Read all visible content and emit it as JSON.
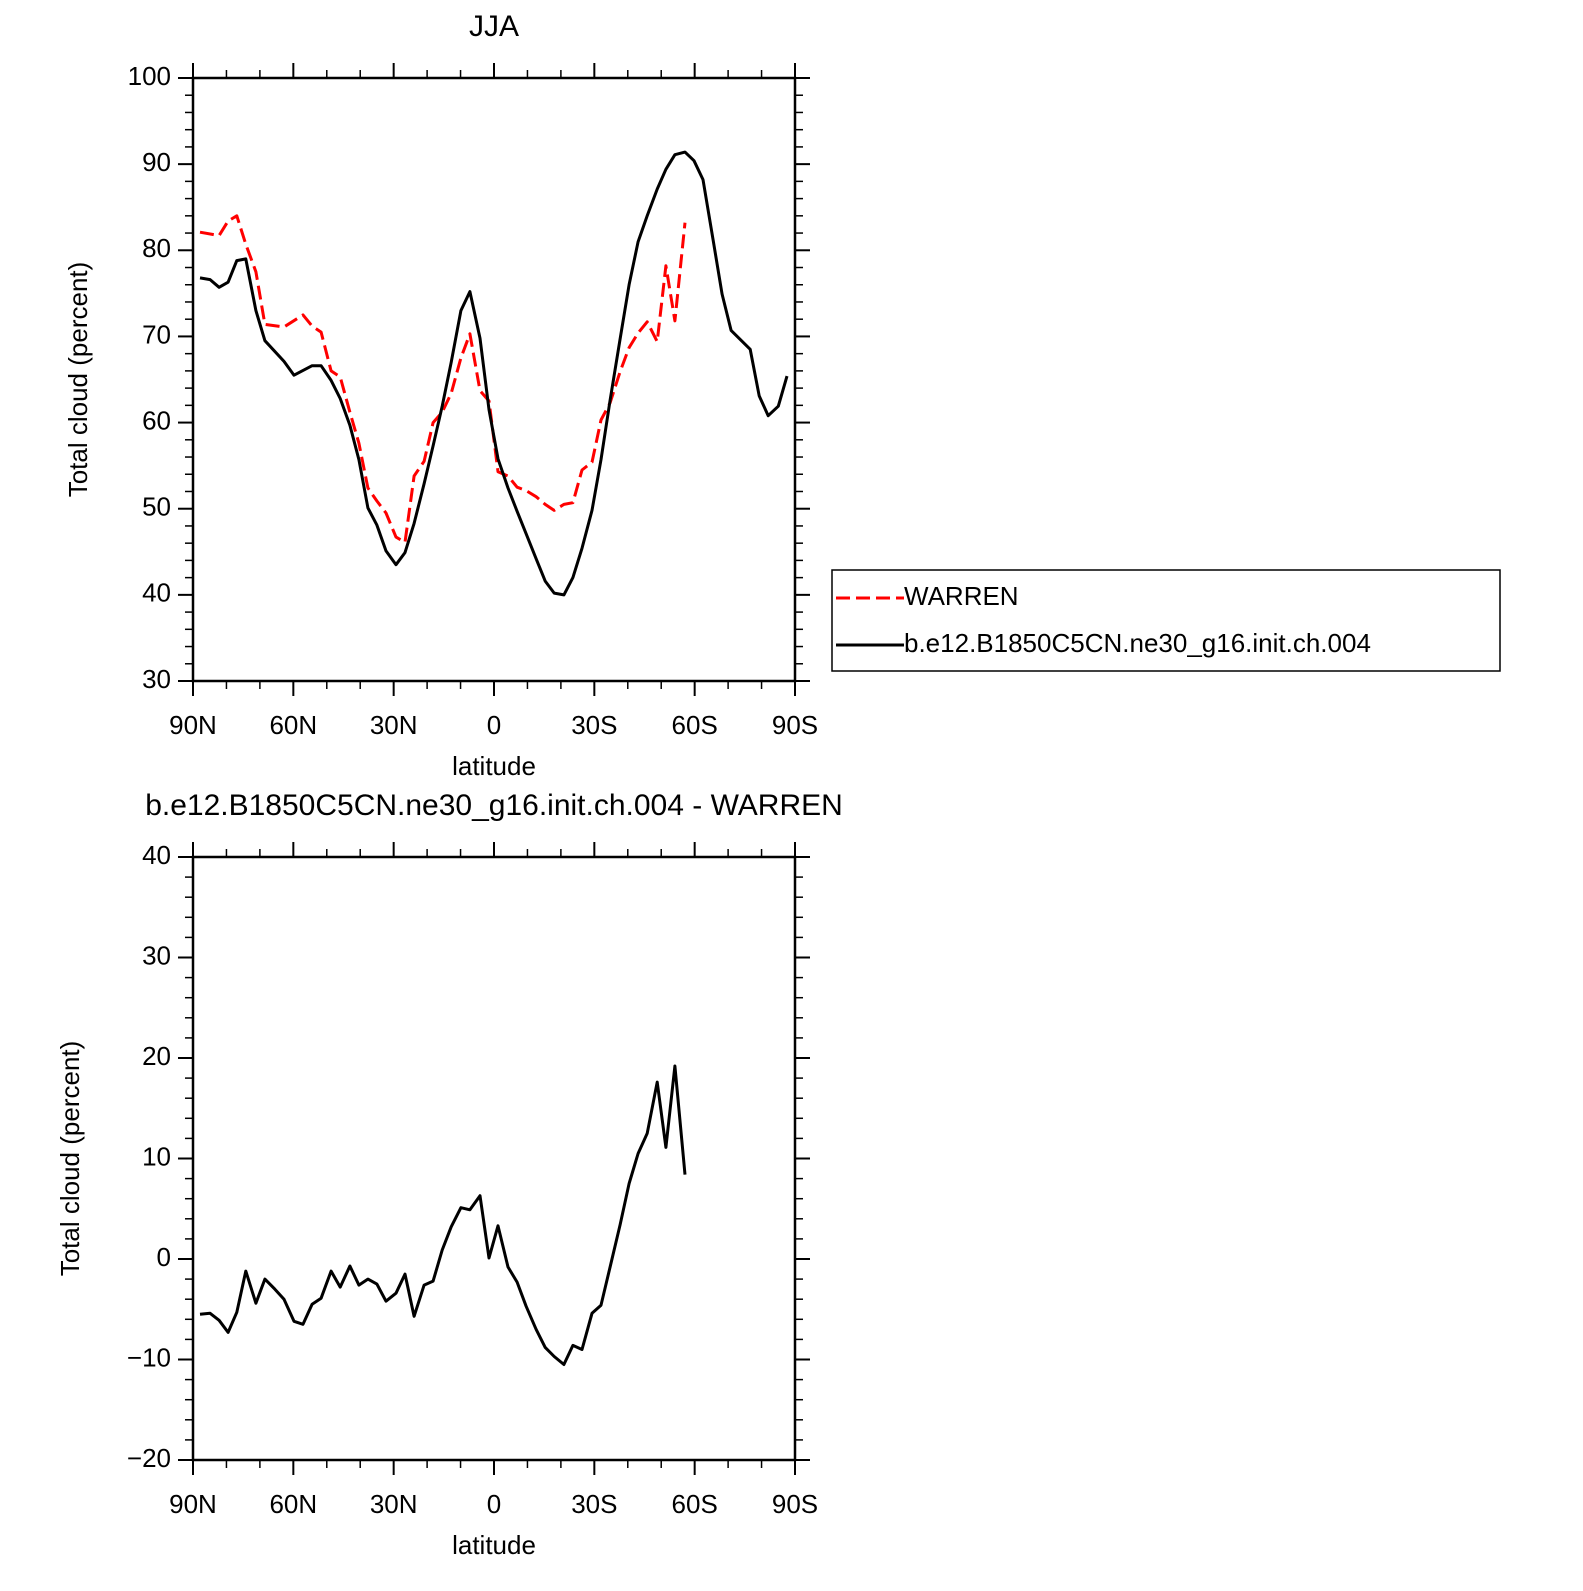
{
  "chart_data": [
    {
      "type": "line",
      "title": "JJA",
      "xlabel": "latitude",
      "ylabel": "Total cloud (percent)",
      "xlim": [
        90,
        -90
      ],
      "xticks": [
        {
          "value": 90,
          "label": "90N"
        },
        {
          "value": 60,
          "label": "60N"
        },
        {
          "value": 30,
          "label": "30N"
        },
        0,
        {
          "value": -30,
          "label": "30S"
        },
        {
          "value": -60,
          "label": "60S"
        },
        {
          "value": -90,
          "label": "90S"
        }
      ],
      "ylim": [
        30,
        100
      ],
      "yticks": [
        30,
        40,
        50,
        60,
        70,
        80,
        90,
        100
      ],
      "legend": "right",
      "series": [
        {
          "name": "WARREN",
          "color": "#ff0000",
          "line_style": "dashed",
          "x": [
            87.9,
            82.2,
            79.5,
            76.9,
            74.2,
            71.2,
            68.5,
            62.8,
            57.1,
            54.4,
            51.7,
            48.7,
            46.0,
            43.1,
            40.4,
            37.7,
            35.0,
            32.3,
            29.3,
            26.6,
            23.9,
            20.9,
            18.2,
            15.5,
            12.8,
            9.9,
            7.2,
            4.2,
            1.5,
            -1.2,
            -4.2,
            -6.9,
            -9.6,
            -12.6,
            -15.3,
            -18.0,
            -20.9,
            -23.6,
            -26.3,
            -29.3,
            -32.0,
            -34.7,
            -37.7,
            -40.4,
            -43.1,
            -45.8,
            -48.8,
            -51.4,
            -54.1,
            -57.1
          ],
          "values": [
            82.1,
            81.7,
            83.4,
            84.0,
            80.7,
            77.5,
            71.4,
            71.1,
            72.5,
            71.2,
            70.5,
            66.0,
            65.3,
            61.2,
            57.6,
            52.4,
            50.9,
            49.5,
            46.7,
            46.1,
            53.8,
            55.5,
            60.0,
            61.2,
            63.4,
            67.5,
            70.3,
            63.7,
            62.5,
            54.3,
            53.8,
            52.5,
            52.1,
            51.4,
            50.5,
            49.8,
            50.5,
            50.7,
            54.5,
            55.4,
            60.3,
            62.3,
            65.9,
            68.7,
            70.4,
            71.7,
            69.4,
            78.2,
            71.8,
            83.2
          ]
        },
        {
          "name": "b.e12.B1850C5CN.ne30_g16.init.ch.004",
          "color": "#000000",
          "line_style": "solid",
          "x": [
            87.9,
            84.9,
            82.2,
            79.5,
            76.9,
            74.2,
            71.2,
            68.5,
            62.8,
            59.8,
            54.4,
            51.7,
            48.7,
            46.0,
            43.1,
            40.4,
            37.7,
            35.0,
            32.3,
            29.3,
            26.6,
            23.9,
            20.9,
            18.2,
            15.5,
            12.8,
            9.9,
            7.2,
            4.2,
            1.5,
            -1.2,
            -4.2,
            -6.9,
            -9.6,
            -12.6,
            -15.3,
            -18.0,
            -20.9,
            -23.6,
            -26.3,
            -29.3,
            -32.0,
            -34.7,
            -37.7,
            -40.4,
            -43.1,
            -45.8,
            -48.8,
            -51.4,
            -54.1,
            -57.1,
            -59.8,
            -62.5,
            -65.5,
            -68.2,
            -70.9,
            -76.6,
            -79.3,
            -82.0,
            -85.0,
            -87.6
          ],
          "values": [
            76.8,
            76.6,
            75.7,
            76.3,
            78.8,
            79.0,
            73.0,
            69.5,
            67.1,
            65.5,
            66.6,
            66.6,
            64.9,
            62.8,
            59.7,
            55.7,
            50.1,
            48.1,
            45.1,
            43.5,
            44.9,
            48.3,
            52.9,
            57.3,
            61.9,
            67.0,
            73.0,
            75.2,
            69.8,
            61.5,
            55.8,
            52.4,
            49.7,
            47.1,
            44.2,
            41.6,
            40.2,
            40.0,
            42.0,
            45.4,
            49.8,
            55.7,
            62.6,
            69.7,
            76.0,
            81.0,
            84.0,
            87.1,
            89.4,
            91.1,
            91.4,
            90.4,
            88.2,
            81.2,
            74.9,
            70.7,
            68.5,
            63.1,
            60.8,
            61.9,
            65.4
          ]
        }
      ]
    },
    {
      "type": "line",
      "title": "b.e12.B1850C5CN.ne30_g16.init.ch.004 - WARREN",
      "xlabel": "latitude",
      "ylabel": "Total cloud (percent)",
      "xlim": [
        90,
        -90
      ],
      "xticks": [
        {
          "value": 90,
          "label": "90N"
        },
        {
          "value": 60,
          "label": "60N"
        },
        {
          "value": 30,
          "label": "30N"
        },
        0,
        {
          "value": -30,
          "label": "30S"
        },
        {
          "value": -60,
          "label": "60S"
        },
        {
          "value": -90,
          "label": "90S"
        }
      ],
      "ylim": [
        -20,
        40
      ],
      "yticks": [
        {
          "value": -20,
          "label": "−20"
        },
        {
          "value": -10,
          "label": "−10"
        },
        0,
        10,
        20,
        30,
        40
      ],
      "series": [
        {
          "color": "#000000",
          "line_style": "solid",
          "x": [
            87.9,
            84.9,
            82.2,
            79.5,
            76.9,
            74.2,
            71.2,
            68.5,
            65.5,
            62.8,
            59.8,
            57.1,
            54.4,
            51.7,
            48.7,
            46.0,
            43.1,
            40.4,
            37.7,
            35.0,
            32.3,
            29.3,
            26.6,
            23.9,
            20.9,
            18.2,
            15.5,
            12.8,
            9.9,
            7.2,
            4.2,
            1.5,
            -1.2,
            -4.2,
            -6.9,
            -9.6,
            -12.6,
            -15.3,
            -18.0,
            -20.9,
            -23.6,
            -26.3,
            -29.3,
            -32.0,
            -34.7,
            -37.7,
            -40.4,
            -43.1,
            -45.8,
            -48.8,
            -51.4,
            -54.1,
            -57.1
          ],
          "values": [
            -5.5,
            -5.4,
            -6.1,
            -7.3,
            -5.3,
            -1.2,
            -4.4,
            -2.0,
            -3.0,
            -4.0,
            -6.2,
            -6.5,
            -4.5,
            -3.9,
            -1.2,
            -2.8,
            -0.7,
            -2.6,
            -2.0,
            -2.5,
            -4.2,
            -3.4,
            -1.5,
            -5.7,
            -2.6,
            -2.2,
            0.9,
            3.2,
            5.1,
            4.9,
            6.3,
            0.1,
            3.3,
            -0.8,
            -2.3,
            -4.7,
            -7.0,
            -8.8,
            -9.7,
            -10.5,
            -8.6,
            -9.0,
            -5.4,
            -4.6,
            -0.8,
            3.4,
            7.5,
            10.5,
            12.5,
            17.6,
            11.1,
            19.2,
            8.4
          ]
        }
      ]
    }
  ]
}
